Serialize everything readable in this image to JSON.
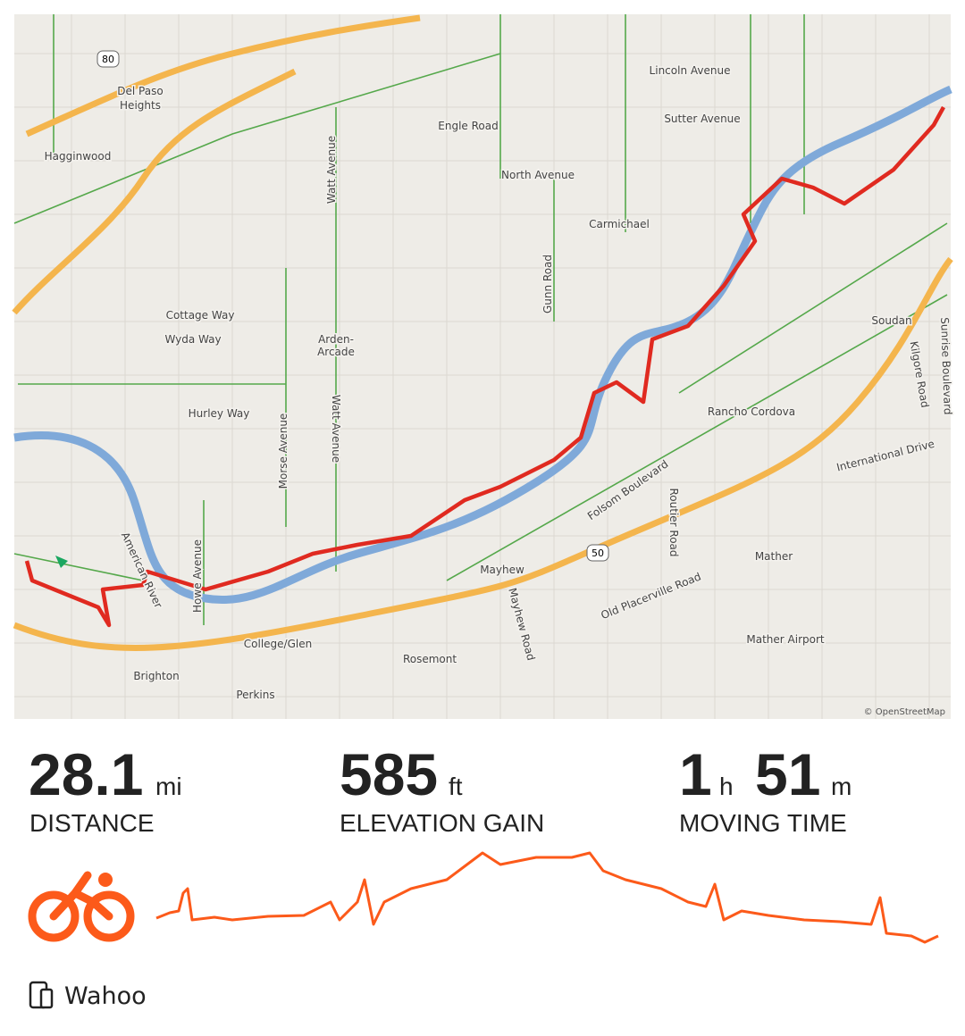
{
  "map": {
    "labels": [
      "Del Paso",
      "Heights",
      "Hagginwood",
      "Engle Road",
      "Lincoln Avenue",
      "Sutter Avenue",
      "North Avenue",
      "Carmichael",
      "Cottage Way",
      "Wyda Way",
      "Arden-",
      "Arcade",
      "Hurley Way",
      "Rancho Cordova",
      "Soudan",
      "International Drive",
      "Folsom Boulevard",
      "Mayhew",
      "Mather",
      "Old Placerville Road",
      "College/Glen",
      "Rosemont",
      "Brighton",
      "Perkins",
      "Mather Airport",
      "Gunn Road",
      "Watt Avenue",
      "Watt Avenue",
      "Morse Avenue",
      "Routier Road",
      "Mayhew Road",
      "Kilgore Road",
      "Sunrise Boulevard",
      "Howe Avenue",
      "American River"
    ],
    "shields": [
      "80",
      "50"
    ],
    "attribution": "© OpenStreetMap"
  },
  "stats": [
    {
      "value": "28.1",
      "unit": "mi",
      "label": "DISTANCE"
    },
    {
      "value": "585",
      "unit": "ft",
      "label": "ELEVATION GAIN"
    },
    {
      "value": "1",
      "unit": "h",
      "value2": "51",
      "unit2": "m",
      "label": "MOVING TIME"
    }
  ],
  "device": "Wahoo"
}
